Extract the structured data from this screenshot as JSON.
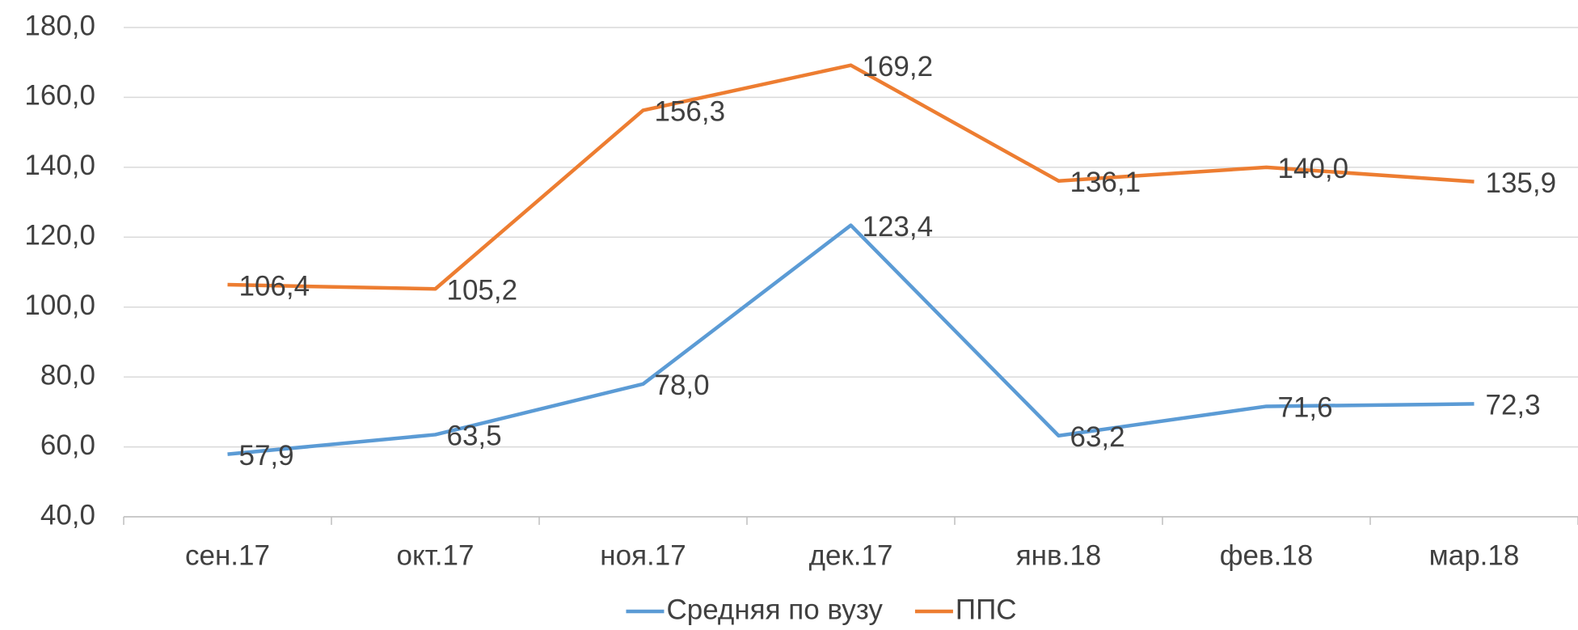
{
  "chart_data": {
    "type": "line",
    "categories": [
      "сен.17",
      "окт.17",
      "ноя.17",
      "дек.17",
      "янв.18",
      "фев.18",
      "мар.18"
    ],
    "series": [
      {
        "name": "Средняя по вузу",
        "color": "#5b9bd5",
        "values": [
          57.9,
          63.5,
          78.0,
          123.4,
          63.2,
          71.6,
          72.3
        ],
        "value_labels": [
          "57,9",
          "63,5",
          "78,0",
          "123,4",
          "63,2",
          "71,6",
          "72,3"
        ]
      },
      {
        "name": "ППС",
        "color": "#ed7d31",
        "values": [
          106.4,
          105.2,
          156.3,
          169.2,
          136.1,
          140.0,
          135.9
        ],
        "value_labels": [
          "106,4",
          "105,2",
          "156,3",
          "169,2",
          "136,1",
          "140,0",
          "135,9"
        ]
      }
    ],
    "ylim": [
      40,
      180
    ],
    "yticks": [
      {
        "value": 40,
        "label": "40,0"
      },
      {
        "value": 60,
        "label": "60,0"
      },
      {
        "value": 80,
        "label": "80,0"
      },
      {
        "value": 100,
        "label": "100,0"
      },
      {
        "value": 120,
        "label": "120,0"
      },
      {
        "value": 140,
        "label": "140,0"
      },
      {
        "value": 160,
        "label": "160,0"
      },
      {
        "value": 180,
        "label": "180,0"
      }
    ],
    "grid": true,
    "legend": "bottom"
  }
}
